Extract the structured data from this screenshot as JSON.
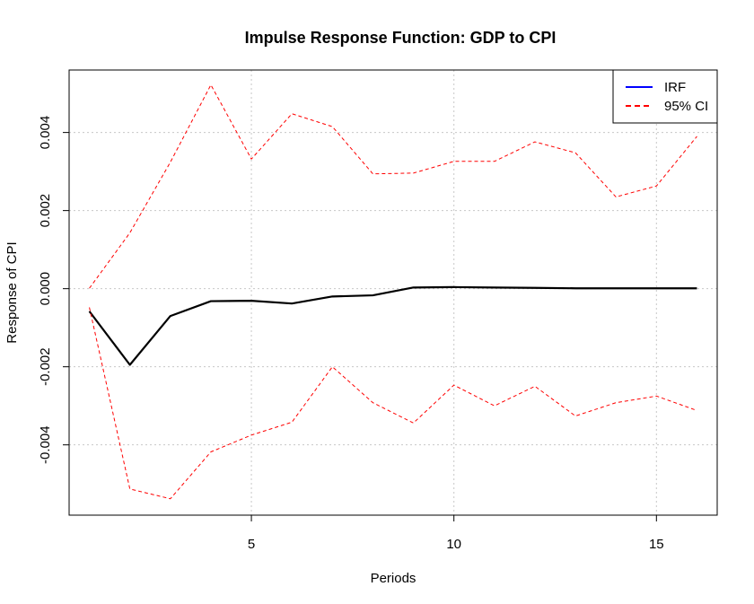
{
  "chart_data": {
    "type": "line",
    "title": "Impulse Response Function: GDP to CPI",
    "xlabel": "Periods",
    "ylabel": "Response of CPI",
    "xlim": [
      0.5,
      16.5
    ],
    "ylim": [
      -0.0058,
      0.0056
    ],
    "x_ticks": [
      5,
      10,
      15
    ],
    "x_tick_labels": [
      "5",
      "10",
      "15"
    ],
    "y_ticks": [
      -0.004,
      -0.002,
      0.0,
      0.002,
      0.004
    ],
    "y_tick_labels": [
      "-0.004",
      "-0.002",
      "0.000",
      "0.002",
      "0.004"
    ],
    "grid": true,
    "legend_position": "top-right",
    "x": [
      1,
      2,
      3,
      4,
      5,
      6,
      7,
      8,
      9,
      10,
      11,
      12,
      13,
      14,
      15,
      16
    ],
    "series": [
      {
        "name": "IRF",
        "color": "#000000",
        "legend_color": "#0000ff",
        "style": "solid",
        "values": [
          -0.00058,
          -0.00195,
          -0.0007,
          -0.00032,
          -0.00031,
          -0.00038,
          -0.0002,
          -0.00017,
          3e-05,
          4e-05,
          3e-05,
          2e-05,
          1e-05,
          1e-05,
          1e-05,
          1e-05
        ]
      },
      {
        "name": "95% CI",
        "color": "#ff0000",
        "style": "dashed",
        "values": [
          1e-05,
          0.00143,
          0.00324,
          0.00522,
          0.00332,
          0.00448,
          0.00415,
          0.00294,
          0.00296,
          0.00326,
          0.00326,
          0.00376,
          0.00348,
          0.00235,
          0.00263,
          0.0039
        ]
      },
      {
        "name": "95% CI lower",
        "color": "#ff0000",
        "style": "dashed",
        "values": [
          -0.00048,
          -0.00513,
          -0.00538,
          -0.00418,
          -0.00375,
          -0.00342,
          -0.002,
          -0.00292,
          -0.00344,
          -0.00247,
          -0.003,
          -0.0025,
          -0.00326,
          -0.00292,
          -0.00275,
          -0.00312
        ]
      }
    ],
    "legend": [
      {
        "label": "IRF",
        "color": "#0000ff",
        "style": "solid"
      },
      {
        "label": "95% CI",
        "color": "#ff0000",
        "style": "dashed"
      }
    ]
  }
}
